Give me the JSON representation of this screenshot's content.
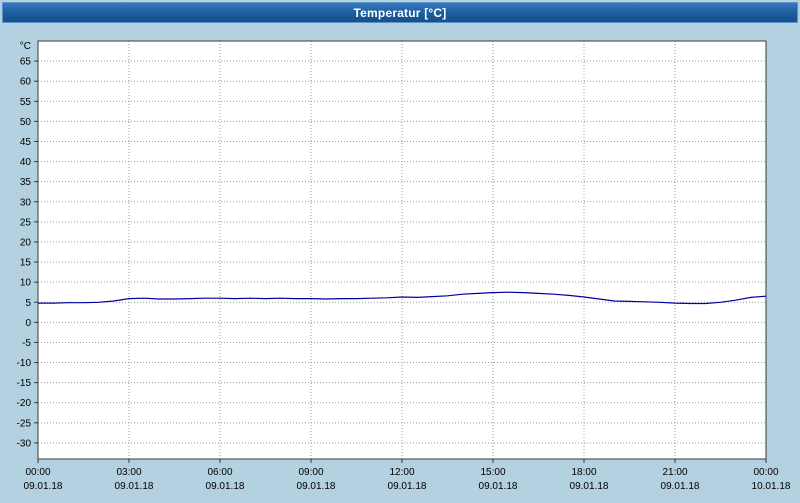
{
  "window": {
    "title": "Temperatur [°C]"
  },
  "colors": {
    "background": "#b3d1e0",
    "titlebar": "#1c5c9e",
    "titlebar_text": "#ffffff",
    "plot_background": "#ffffff",
    "grid": "#9b9b9b",
    "axis": "#3a3a3a",
    "line": "#0000a0"
  },
  "chart_data": {
    "type": "line",
    "title": "Temperatur [°C]",
    "ylabel": "°C",
    "xlabel": "",
    "grid": true,
    "legend": "none",
    "xlim": [
      0,
      24
    ],
    "ylim": [
      -34,
      70
    ],
    "yticks": [
      -30,
      -25,
      -20,
      -15,
      -10,
      -5,
      0,
      5,
      10,
      15,
      20,
      25,
      30,
      35,
      40,
      45,
      50,
      55,
      60,
      65
    ],
    "xticks": [
      {
        "hour": 0,
        "time": "00:00",
        "date": "09.01.18"
      },
      {
        "hour": 3,
        "time": "03:00",
        "date": "09.01.18"
      },
      {
        "hour": 6,
        "time": "06:00",
        "date": "09.01.18"
      },
      {
        "hour": 9,
        "time": "09:00",
        "date": "09.01.18"
      },
      {
        "hour": 12,
        "time": "12:00",
        "date": "09.01.18"
      },
      {
        "hour": 15,
        "time": "15:00",
        "date": "09.01.18"
      },
      {
        "hour": 18,
        "time": "18:00",
        "date": "09.01.18"
      },
      {
        "hour": 21,
        "time": "21:00",
        "date": "09.01.18"
      },
      {
        "hour": 24,
        "time": "00:00",
        "date": "10.01.18"
      }
    ],
    "series": [
      {
        "name": "Temperatur",
        "color": "#0000a0",
        "x": [
          0,
          0.5,
          1,
          1.5,
          2,
          2.5,
          3,
          3.5,
          4,
          4.5,
          5,
          5.5,
          6,
          6.5,
          7,
          7.5,
          8,
          8.5,
          9,
          9.5,
          10,
          10.5,
          11,
          11.5,
          12,
          12.5,
          13,
          13.5,
          14,
          14.5,
          15,
          15.5,
          16,
          16.5,
          17,
          17.5,
          18,
          18.5,
          19,
          19.5,
          20,
          20.5,
          21,
          21.5,
          22,
          22.5,
          23,
          23.5,
          24
        ],
        "values": [
          4.8,
          4.8,
          4.9,
          4.9,
          5.0,
          5.3,
          5.9,
          6.0,
          5.8,
          5.8,
          5.9,
          6.0,
          6.0,
          5.9,
          6.0,
          5.9,
          6.0,
          5.9,
          5.9,
          5.8,
          5.9,
          5.9,
          6.0,
          6.1,
          6.3,
          6.2,
          6.4,
          6.6,
          7.0,
          7.2,
          7.4,
          7.5,
          7.4,
          7.2,
          7.0,
          6.7,
          6.3,
          5.8,
          5.3,
          5.2,
          5.1,
          5.0,
          4.8,
          4.7,
          4.7,
          5.0,
          5.5,
          6.2,
          6.5
        ]
      }
    ]
  }
}
